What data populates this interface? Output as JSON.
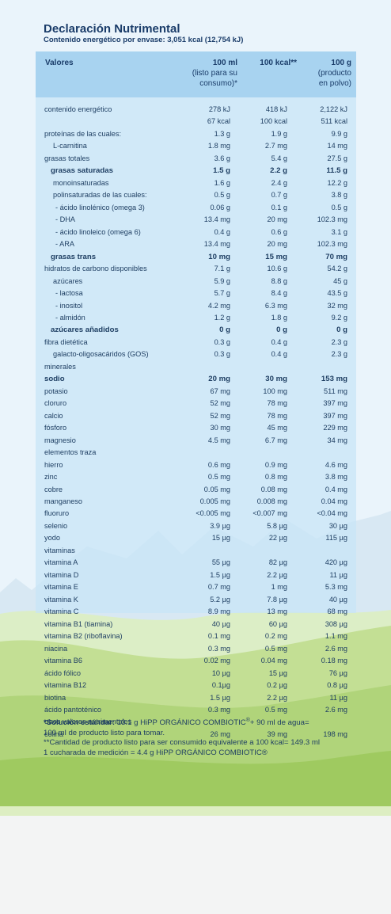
{
  "title": "Declaración Nutrimental",
  "subtitle": "Contenido energético por envase: 3,051 kcal (12,754 kJ)",
  "headers": {
    "col0": "Valores",
    "col1_main": "100 ml",
    "col1_sub1": "(listo para su",
    "col1_sub2": "consumo)*",
    "col2_main": "100 kcal**",
    "col3_main": "100 g",
    "col3_sub1": "(producto",
    "col3_sub2": "en polvo)"
  },
  "rows": [
    {
      "label": "contenido energético",
      "v1": "278 kJ",
      "v2": "418 kJ",
      "v3": "2,122 kJ"
    },
    {
      "label": "",
      "v1": "67 kcal",
      "v2": "100 kcal",
      "v3": "511 kcal"
    },
    {
      "label": "proteínas de las cuales:",
      "v1": "1.3 g",
      "v2": "1.9 g",
      "v3": "9.9 g"
    },
    {
      "label": "L-carnitina",
      "v1": "1.8 mg",
      "v2": "2.7 mg",
      "v3": "14 mg"
    },
    {
      "label": "grasas totales",
      "v1": "3.6 g",
      "v2": "5.4 g",
      "v3": "27.5 g"
    },
    {
      "label": "grasas saturadas",
      "v1": "1.5 g",
      "v2": "2.2 g",
      "v3": "11.5 g"
    },
    {
      "label": "monoinsaturadas",
      "v1": "1.6 g",
      "v2": "2.4 g",
      "v3": "12.2 g"
    },
    {
      "label": "polinsaturadas de las cuales:",
      "v1": "0.5 g",
      "v2": "0.7 g",
      "v3": "3.8 g"
    },
    {
      "label": "- ácido linolénico (omega 3)",
      "v1": "0.06 g",
      "v2": "0.1 g",
      "v3": "0.5 g"
    },
    {
      "label": "- DHA",
      "v1": "13.4 mg",
      "v2": "20 mg",
      "v3": "102.3 mg"
    },
    {
      "label": "- ácido linoleico (omega 6)",
      "v1": "0.4 g",
      "v2": "0.6 g",
      "v3": "3.1 g"
    },
    {
      "label": "- ARA",
      "v1": "13.4 mg",
      "v2": "20 mg",
      "v3": "102.3 mg"
    },
    {
      "label": "grasas trans",
      "v1": "10 mg",
      "v2": "15 mg",
      "v3": "70 mg"
    },
    {
      "label": "hidratos de carbono disponibles",
      "v1": "7.1 g",
      "v2": "10.6 g",
      "v3": "54.2 g"
    },
    {
      "label": "azúcares",
      "v1": "5.9 g",
      "v2": "8.8 g",
      "v3": "45 g"
    },
    {
      "label": "- lactosa",
      "v1": "5.7 g",
      "v2": "8.4 g",
      "v3": "43.5 g"
    },
    {
      "label": "- inositol",
      "v1": "4.2 mg",
      "v2": "6.3 mg",
      "v3": "32 mg"
    },
    {
      "label": "- almidón",
      "v1": "1.2 g",
      "v2": "1.8 g",
      "v3": "9.2 g"
    },
    {
      "label": "azúcares añadidos",
      "v1": "0 g",
      "v2": "0 g",
      "v3": "0 g"
    },
    {
      "label": "fibra dietética",
      "v1": "0.3 g",
      "v2": "0.4 g",
      "v3": "2.3 g"
    },
    {
      "label": "galacto-oligosacáridos (GOS)",
      "v1": "0.3 g",
      "v2": "0.4 g",
      "v3": "2.3 g"
    },
    {
      "label": "minerales",
      "v1": "",
      "v2": "",
      "v3": ""
    },
    {
      "label": "sodio",
      "v1": "20 mg",
      "v2": "30 mg",
      "v3": "153 mg"
    },
    {
      "label": "potasio",
      "v1": "67 mg",
      "v2": "100 mg",
      "v3": "511 mg"
    },
    {
      "label": "cloruro",
      "v1": "52 mg",
      "v2": "78 mg",
      "v3": "397 mg"
    },
    {
      "label": "calcio",
      "v1": "52 mg",
      "v2": "78 mg",
      "v3": "397 mg"
    },
    {
      "label": "fósforo",
      "v1": "30 mg",
      "v2": "45 mg",
      "v3": "229 mg"
    },
    {
      "label": "magnesio",
      "v1": "4.5 mg",
      "v2": "6.7 mg",
      "v3": "34 mg"
    },
    {
      "label": "elementos traza",
      "v1": "",
      "v2": "",
      "v3": ""
    },
    {
      "label": "hierro",
      "v1": "0.6 mg",
      "v2": "0.9 mg",
      "v3": "4.6 mg"
    },
    {
      "label": "zinc",
      "v1": "0.5 mg",
      "v2": "0.8 mg",
      "v3": "3.8 mg"
    },
    {
      "label": "cobre",
      "v1": "0.05 mg",
      "v2": "0.08 mg",
      "v3": "0.4 mg"
    },
    {
      "label": "manganeso",
      "v1": "0.005 mg",
      "v2": "0.008 mg",
      "v3": "0.04 mg"
    },
    {
      "label": "fluoruro",
      "v1": "<0.005 mg",
      "v2": "<0.007 mg",
      "v3": "<0.04 mg"
    },
    {
      "label": "selenio",
      "v1": "3.9 µg",
      "v2": "5.8 µg",
      "v3": "30 µg"
    },
    {
      "label": "yodo",
      "v1": "15 µg",
      "v2": "22 µg",
      "v3": "115 µg"
    },
    {
      "label": "vitaminas",
      "v1": "",
      "v2": "",
      "v3": ""
    },
    {
      "label": "vitamina A",
      "v1": "55 µg",
      "v2": "82 µg",
      "v3": "420 µg"
    },
    {
      "label": "vitamina D",
      "v1": "1.5 µg",
      "v2": "2.2 µg",
      "v3": "11 µg"
    },
    {
      "label": "vitamina E",
      "v1": "0.7 mg",
      "v2": "1 mg",
      "v3": "5.3 mg"
    },
    {
      "label": "vitamina K",
      "v1": "5.2 µg",
      "v2": "7.8 µg",
      "v3": "40 µg"
    },
    {
      "label": "vitamina C",
      "v1": "8.9 mg",
      "v2": "13 mg",
      "v3": "68 mg"
    },
    {
      "label": "vitamina B1 (tiamina)",
      "v1": "40 µg",
      "v2": "60 µg",
      "v3": "308 µg"
    },
    {
      "label": "vitamina B2 (riboflavina)",
      "v1": "0.1 mg",
      "v2": "0.2 mg",
      "v3": "1.1 mg"
    },
    {
      "label": "niacina",
      "v1": "0.3 mg",
      "v2": "0.5 mg",
      "v3": "2.6 mg"
    },
    {
      "label": "vitamina B6",
      "v1": "0.02 mg",
      "v2": "0.04 mg",
      "v3": "0.18 mg"
    },
    {
      "label": "ácido fólico",
      "v1": "10 µg",
      "v2": "15 µg",
      "v3": "76 µg"
    },
    {
      "label": "vitamina B12",
      "v1": "0.1µg",
      "v2": "0.2 µg",
      "v3": "0.8 µg"
    },
    {
      "label": "biotina",
      "v1": "1.5 µg",
      "v2": "2.2 µg",
      "v3": "11 µg"
    },
    {
      "label": "ácido pantoténico",
      "v1": "0.3 mg",
      "v2": "0.5 mg",
      "v3": "2.6 mg"
    },
    {
      "label": "otros valores nutrimentales",
      "v1": "",
      "v2": "",
      "v3": ""
    },
    {
      "label": "colina",
      "v1": "26 mg",
      "v2": "39 mg",
      "v3": "198 mg"
    }
  ],
  "notes": {
    "n1_bold": "*Solución estándar:",
    "n1_text": " 13.1 g HiPP ORGÁNICO COMBIOTIC",
    "n1_reg": "®",
    "n1_text2": "+ 90 ml de agua=",
    "n1_line2": "100 ml de producto listo para tomar.",
    "n2": "**Cantidad de producto listo para ser consumido equivalente a 100 kcal= 149.3 ml",
    "n3": "1 cucharada de medición = 4.4 g HiPP ORGÁNICO COMBIOTIC®"
  },
  "colors": {
    "panel": "#eaf4fb",
    "table": "#c8e4f7",
    "header": "#a8d3f0",
    "text": "#1f3f63",
    "hills_green": "#a9cf6a",
    "mountains": "#d4e6f1"
  }
}
